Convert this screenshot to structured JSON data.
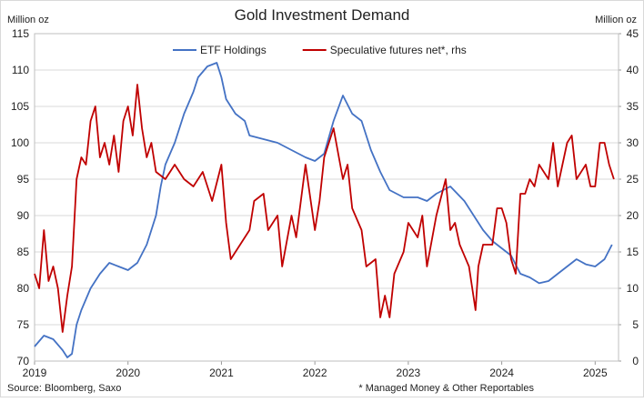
{
  "chart_data": {
    "type": "line",
    "title": "Gold Investment Demand",
    "y_label": "Million oz",
    "y2_label": "Million oz",
    "source": "Source: Bloomberg, Saxo",
    "footnote": "* Managed Money & Other Reportables",
    "xlim": [
      2019,
      2025.25
    ],
    "xticks": [
      2019,
      2020,
      2021,
      2022,
      2023,
      2024,
      2025
    ],
    "ylim": [
      70,
      115
    ],
    "yticks": [
      70,
      75,
      80,
      85,
      90,
      95,
      100,
      105,
      110,
      115
    ],
    "y2lim": [
      0,
      45
    ],
    "y2ticks": [
      0,
      5,
      10,
      15,
      20,
      25,
      30,
      35,
      40,
      45
    ],
    "grid": true,
    "legend": "top",
    "series": [
      {
        "name": "ETF Holdings",
        "color": "#4472c4",
        "x": [
          2019.0,
          2019.1,
          2019.2,
          2019.3,
          2019.35,
          2019.4,
          2019.45,
          2019.5,
          2019.6,
          2019.7,
          2019.8,
          2019.9,
          2020.0,
          2020.1,
          2020.2,
          2020.3,
          2020.35,
          2020.4,
          2020.5,
          2020.6,
          2020.7,
          2020.75,
          2020.85,
          2020.95,
          2021.0,
          2021.05,
          2021.15,
          2021.25,
          2021.3,
          2021.45,
          2021.6,
          2021.75,
          2021.9,
          2022.0,
          2022.1,
          2022.2,
          2022.3,
          2022.4,
          2022.5,
          2022.6,
          2022.7,
          2022.8,
          2022.95,
          2023.1,
          2023.2,
          2023.3,
          2023.45,
          2023.6,
          2023.7,
          2023.8,
          2023.9,
          2024.0,
          2024.1,
          2024.2,
          2024.3,
          2024.4,
          2024.5,
          2024.6,
          2024.7,
          2024.8,
          2024.9,
          2025.0,
          2025.1,
          2025.18
        ],
        "values": [
          72,
          73.5,
          73,
          71.5,
          70.5,
          71,
          75,
          77,
          80,
          82,
          83.5,
          83,
          82.5,
          83.5,
          86,
          90,
          94,
          97,
          100,
          104,
          107,
          109,
          110.5,
          111,
          109,
          106,
          104,
          103,
          101,
          100.5,
          100,
          99,
          98,
          97.5,
          98.5,
          103,
          106.5,
          104,
          103,
          99,
          96,
          93.5,
          92.5,
          92.5,
          92,
          93,
          94,
          92,
          90,
          88,
          86.5,
          85.5,
          84.5,
          82,
          81.5,
          80.7,
          81,
          82,
          83,
          84,
          83.3,
          83,
          84,
          86
        ]
      },
      {
        "name": "Speculative futures net*, rhs",
        "color": "#c00000",
        "axis": "y2",
        "x": [
          2019.0,
          2019.05,
          2019.1,
          2019.15,
          2019.2,
          2019.25,
          2019.3,
          2019.35,
          2019.4,
          2019.45,
          2019.5,
          2019.55,
          2019.6,
          2019.65,
          2019.7,
          2019.75,
          2019.8,
          2019.85,
          2019.9,
          2019.95,
          2020.0,
          2020.05,
          2020.1,
          2020.15,
          2020.2,
          2020.25,
          2020.3,
          2020.4,
          2020.5,
          2020.6,
          2020.7,
          2020.8,
          2020.9,
          2021.0,
          2021.05,
          2021.1,
          2021.2,
          2021.3,
          2021.35,
          2021.45,
          2021.5,
          2021.6,
          2021.65,
          2021.75,
          2021.8,
          2021.9,
          2022.0,
          2022.05,
          2022.1,
          2022.2,
          2022.3,
          2022.35,
          2022.4,
          2022.5,
          2022.55,
          2022.65,
          2022.7,
          2022.75,
          2022.8,
          2022.85,
          2022.95,
          2023.0,
          2023.1,
          2023.15,
          2023.2,
          2023.3,
          2023.4,
          2023.45,
          2023.5,
          2023.55,
          2023.65,
          2023.72,
          2023.75,
          2023.8,
          2023.9,
          2023.95,
          2024.0,
          2024.05,
          2024.1,
          2024.15,
          2024.2,
          2024.25,
          2024.3,
          2024.35,
          2024.4,
          2024.5,
          2024.55,
          2024.6,
          2024.7,
          2024.75,
          2024.8,
          2024.9,
          2024.95,
          2025.0,
          2025.05,
          2025.1,
          2025.15,
          2025.2
        ],
        "values": [
          12,
          10,
          18,
          11,
          13,
          10,
          4,
          9,
          13,
          25,
          28,
          27,
          33,
          35,
          28,
          30,
          27,
          31,
          26,
          33,
          35,
          31,
          38,
          32,
          28,
          30,
          26,
          25,
          27,
          25,
          24,
          26,
          22,
          27,
          19,
          14,
          16,
          18,
          22,
          23,
          18,
          20,
          13,
          20,
          17,
          27,
          18,
          22,
          28,
          32,
          25,
          27,
          21,
          18,
          13,
          14,
          6,
          9,
          6,
          12,
          15,
          19,
          17,
          20,
          13,
          20,
          25,
          18,
          19,
          16,
          13,
          7,
          13,
          16,
          16,
          21,
          21,
          19,
          14,
          12,
          23,
          23,
          25,
          24,
          27,
          25,
          30,
          24,
          30,
          31,
          25,
          27,
          24,
          24,
          30,
          30,
          27,
          25
        ]
      }
    ]
  }
}
